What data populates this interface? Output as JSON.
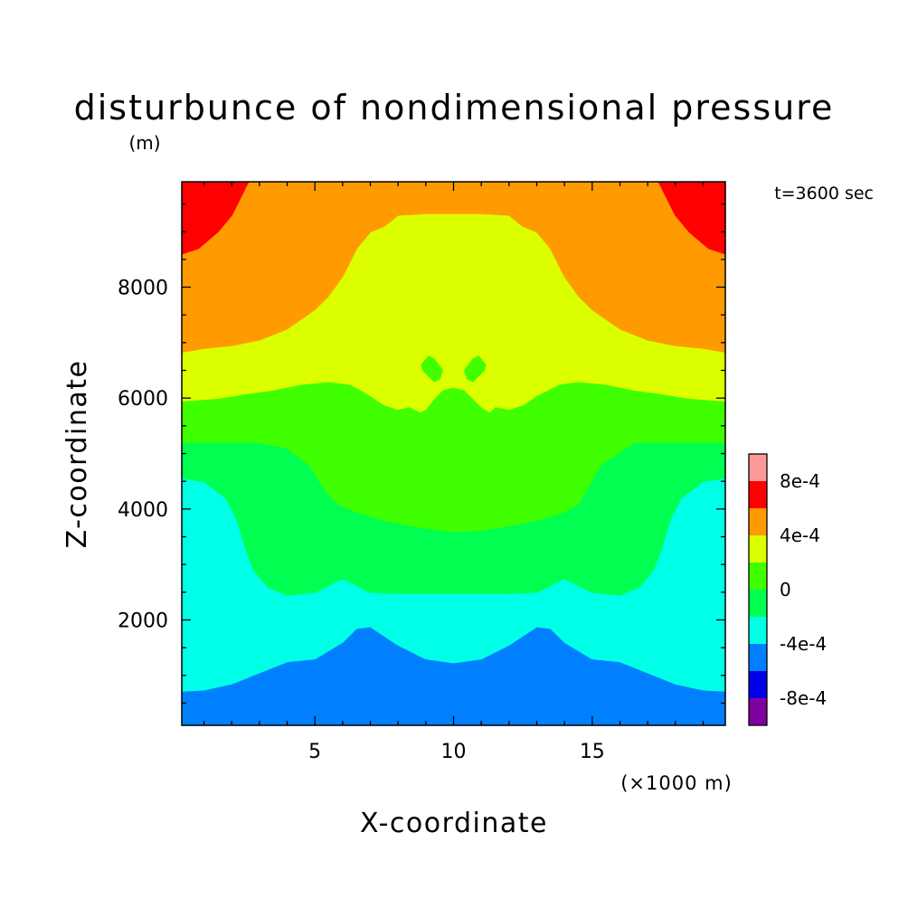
{
  "chart_data": {
    "type": "heatmap",
    "subtype": "filled-contour",
    "title": "disturbunce of nondimensional pressure",
    "units": "(m)",
    "time_label": "t=3600 sec",
    "xlabel": "X-coordinate",
    "ylabel": "Z-coordinate",
    "x_units_label": "(×1000 m)",
    "xlim": [
      0.2,
      19.8
    ],
    "ylim": [
      100,
      9900
    ],
    "x_ticks": [
      5,
      10,
      15
    ],
    "x_tick_labels": [
      "5",
      "10",
      "15"
    ],
    "y_ticks": [
      2000,
      4000,
      6000,
      8000
    ],
    "y_tick_labels": [
      "2000",
      "4000",
      "6000",
      "8000"
    ],
    "colorbar": {
      "labels": [
        "8e-4",
        "4e-4",
        "0",
        "-4e-4",
        "-8e-4"
      ],
      "label_levels": [
        0.0008,
        0.0004,
        0,
        -0.0004,
        -0.0008
      ],
      "bands": [
        {
          "min": -0.001,
          "max": -0.0008,
          "color": "#7f00a0"
        },
        {
          "min": -0.0008,
          "max": -0.0006,
          "color": "#0000e6"
        },
        {
          "min": -0.0006,
          "max": -0.0004,
          "color": "#0080ff"
        },
        {
          "min": -0.0004,
          "max": -0.0002,
          "color": "#00ffe6"
        },
        {
          "min": -0.0002,
          "max": 0,
          "color": "#00ff50"
        },
        {
          "min": 0,
          "max": 0.0002,
          "color": "#40ff00"
        },
        {
          "min": 0.0002,
          "max": 0.0004,
          "color": "#dcff00"
        },
        {
          "min": 0.0004,
          "max": 0.0006,
          "color": "#ff9b00"
        },
        {
          "min": 0.0006,
          "max": 0.0008,
          "color": "#ff0000"
        },
        {
          "min": 0.0008,
          "max": 0.001,
          "color": "#ff9a9a"
        }
      ]
    },
    "regions": [
      {
        "name": "band-neg-6e-4",
        "color": "#0080ff",
        "xs": [
          0.2,
          19.8,
          19.8,
          0.2
        ],
        "zs": [
          100,
          100,
          9900,
          9900
        ]
      },
      {
        "name": "band-neg-4e-4",
        "color": "#00ffe6",
        "xs": [
          0.2,
          1.0,
          2.0,
          3.0,
          4.0,
          5.0,
          6.0,
          6.5,
          7.0,
          8.0,
          9.0,
          10.0,
          11.0,
          12.0,
          13.0,
          13.5,
          14.0,
          15.0,
          16.0,
          17.0,
          18.0,
          19.0,
          19.8,
          19.8,
          0.2
        ],
        "zs": [
          720,
          740,
          850,
          1050,
          1250,
          1300,
          1600,
          1850,
          1880,
          1550,
          1300,
          1230,
          1300,
          1550,
          1880,
          1850,
          1600,
          1300,
          1250,
          1050,
          850,
          740,
          720,
          9900,
          9900
        ]
      },
      {
        "name": "band-neg-2e-4",
        "color": "#00ff50",
        "xs": [
          0.2,
          1.0,
          1.8,
          2.2,
          2.5,
          2.8,
          3.3,
          4.0,
          5.0,
          6.0,
          7.0,
          8.0,
          9.0,
          10.0,
          11.0,
          12.0,
          13.0,
          14.0,
          15.0,
          16.0,
          16.7,
          17.2,
          17.5,
          17.8,
          18.2,
          19.0,
          19.8,
          19.8,
          0.2
        ],
        "zs": [
          4560,
          4500,
          4200,
          3800,
          3300,
          2900,
          2600,
          2450,
          2500,
          2750,
          2500,
          2480,
          2480,
          2480,
          2480,
          2480,
          2500,
          2750,
          2500,
          2450,
          2600,
          2900,
          3300,
          3800,
          4200,
          4500,
          4560,
          9900,
          9900
        ]
      },
      {
        "name": "band-zero",
        "color": "#40ff00",
        "xs": [
          0.2,
          3.0,
          4.0,
          4.8,
          5.3,
          5.8,
          6.5,
          7.5,
          8.5,
          9.5,
          10.2,
          11.0,
          12.0,
          13.0,
          14.0,
          14.5,
          15.3,
          16.5,
          19.8,
          19.8,
          0.2
        ],
        "zs": [
          5200,
          5200,
          5100,
          4800,
          4400,
          4100,
          3950,
          3800,
          3700,
          3620,
          3600,
          3620,
          3700,
          3800,
          3950,
          4100,
          4800,
          5200,
          5200,
          9900,
          9900
        ]
      },
      {
        "name": "band-2e-4",
        "color": "#dcff00",
        "xs": [
          0.2,
          1.5,
          2.5,
          3.5,
          4.5,
          5.5,
          6.3,
          7.0,
          7.5,
          8.0,
          8.4,
          8.8,
          9.0,
          9.3,
          9.6,
          10.0,
          10.4,
          10.7,
          11.0,
          11.3,
          11.5,
          12.0,
          12.5,
          13.0,
          13.8,
          14.5,
          15.5,
          16.5,
          17.5,
          18.5,
          19.8,
          19.8,
          0.2
        ],
        "zs": [
          5950,
          6000,
          6080,
          6150,
          6250,
          6300,
          6250,
          6050,
          5880,
          5800,
          5850,
          5750,
          5800,
          6000,
          6150,
          6200,
          6150,
          6000,
          5850,
          5750,
          5850,
          5800,
          5880,
          6050,
          6250,
          6300,
          6250,
          6150,
          6080,
          6000,
          5950,
          9900,
          9900
        ]
      },
      {
        "name": "band-4e-4",
        "color": "#ff9b00",
        "xs": [
          0.2,
          1.0,
          2.0,
          3.0,
          4.0,
          5.0,
          5.5,
          6.0,
          6.5,
          7.0,
          7.5,
          8.0,
          9.0,
          10.0,
          11.0,
          12.0,
          12.5,
          13.0,
          13.5,
          14.0,
          14.5,
          15.0,
          16.0,
          17.0,
          18.0,
          19.0,
          19.8,
          19.8,
          0.2
        ],
        "zs": [
          6830,
          6900,
          6950,
          7050,
          7250,
          7600,
          7850,
          8200,
          8700,
          9000,
          9100,
          9300,
          9330,
          9330,
          9330,
          9300,
          9100,
          9000,
          8700,
          8200,
          7850,
          7600,
          7250,
          7050,
          6950,
          6900,
          6830,
          9900,
          9900
        ]
      },
      {
        "name": "band-6e-4-left",
        "color": "#ff0000",
        "xs": [
          0.2,
          0.8,
          1.5,
          2.0,
          2.3,
          2.5,
          2.6,
          0.2
        ],
        "zs": [
          8600,
          8700,
          9000,
          9300,
          9600,
          9800,
          9900,
          9900
        ]
      },
      {
        "name": "band-6e-4-right",
        "color": "#ff0000",
        "xs": [
          19.8,
          19.2,
          18.5,
          18.0,
          17.7,
          17.5,
          17.4,
          19.8
        ],
        "zs": [
          8600,
          8700,
          9000,
          9300,
          9600,
          9800,
          9900,
          9900
        ]
      },
      {
        "name": "blob-left",
        "color": "#40ff00",
        "xs": [
          8.85,
          9.1,
          9.3,
          9.6,
          9.5,
          9.3,
          9.1,
          8.9
        ],
        "zs": [
          6600,
          6750,
          6700,
          6500,
          6350,
          6300,
          6400,
          6500
        ]
      },
      {
        "name": "blob-right",
        "color": "#40ff00",
        "xs": [
          11.15,
          10.9,
          10.7,
          10.4,
          10.5,
          10.7,
          10.9,
          11.1
        ],
        "zs": [
          6600,
          6750,
          6700,
          6500,
          6350,
          6300,
          6400,
          6500
        ]
      }
    ]
  }
}
